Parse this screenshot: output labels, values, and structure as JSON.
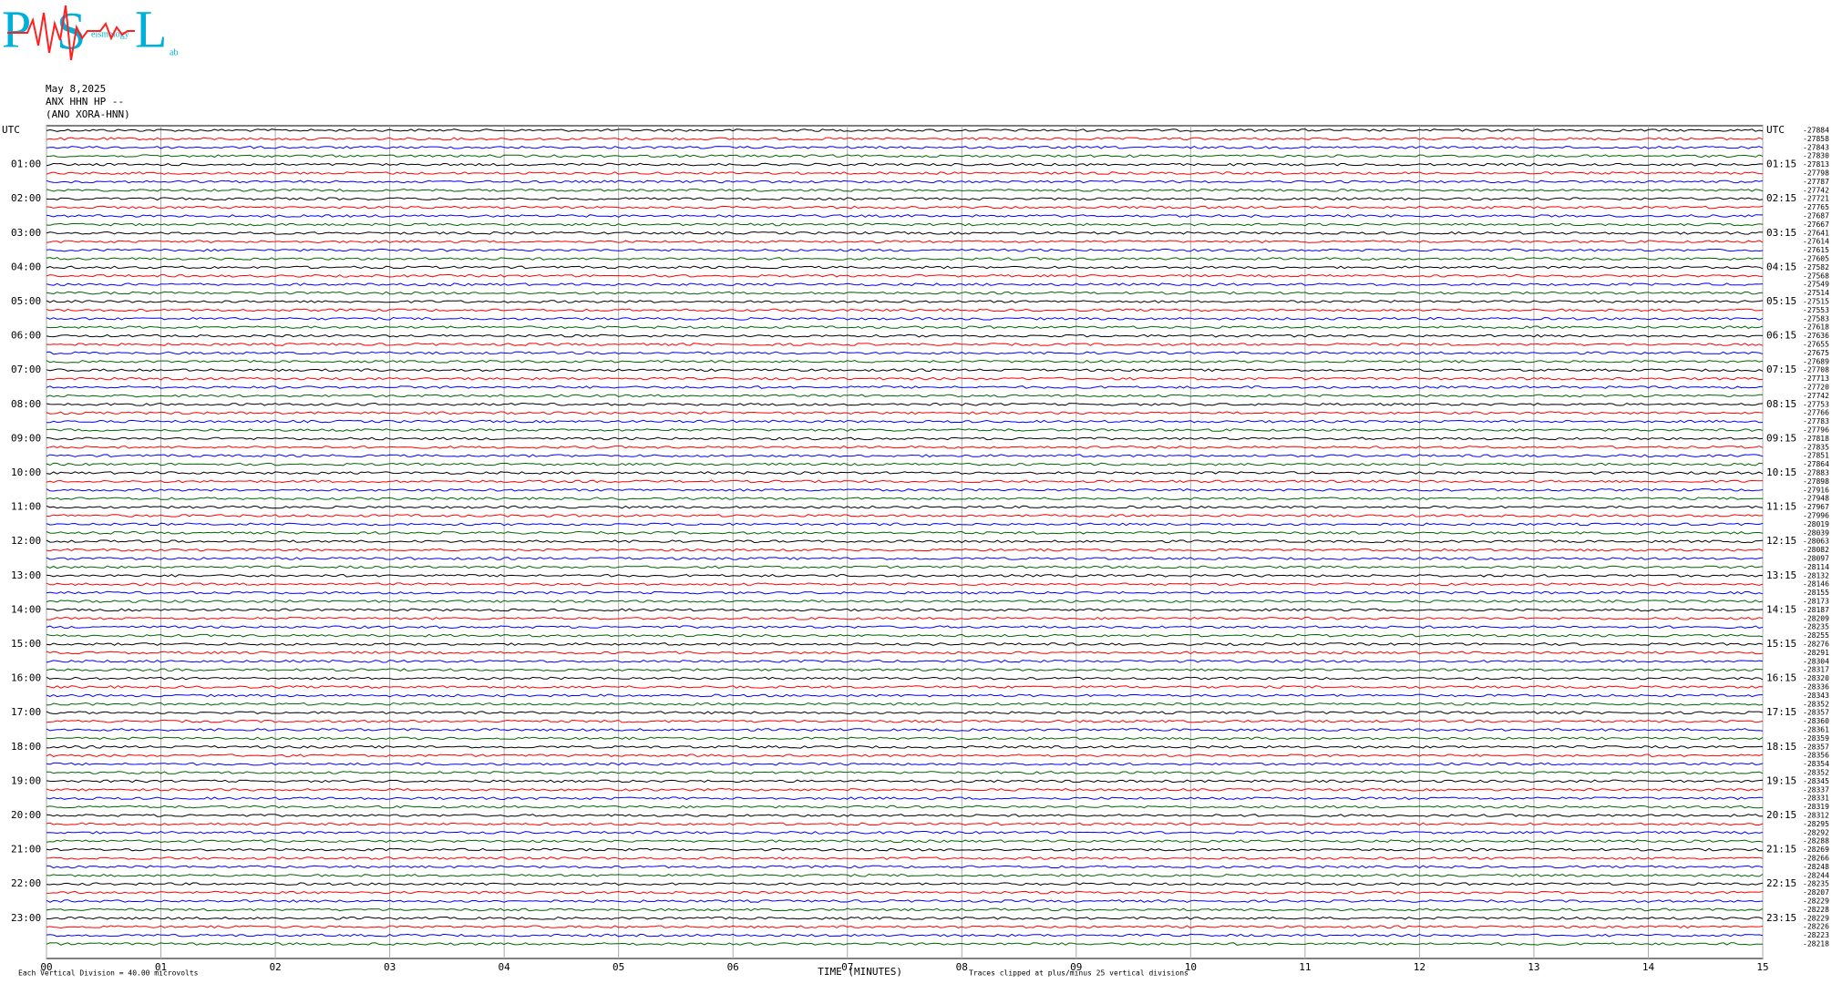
{
  "logo": {
    "letters": [
      "P",
      "S",
      "L"
    ],
    "caption": [
      "eismology",
      "ab"
    ]
  },
  "chart_data": {
    "type": "helicorder",
    "title": [
      "May 8,2025",
      "ANX HHN HP --",
      "(ANO XORA-HNN)"
    ],
    "x_label": "TIME (MINUTES)",
    "xlim": [
      0,
      15
    ],
    "xticks": [
      {
        "value": 0,
        "label": "00"
      },
      {
        "value": 1,
        "label": "01"
      },
      {
        "value": 2,
        "label": "02"
      },
      {
        "value": 3,
        "label": "03"
      },
      {
        "value": 4,
        "label": "04"
      },
      {
        "value": 5,
        "label": "05"
      },
      {
        "value": 6,
        "label": "06"
      },
      {
        "value": 7,
        "label": "07"
      },
      {
        "value": 8,
        "label": "08"
      },
      {
        "value": 9,
        "label": "09"
      },
      10,
      11,
      12,
      13,
      14,
      15
    ],
    "trace_colors": [
      "#000000",
      "#ff0000",
      "#0000ff",
      "#006400"
    ],
    "left_labels": [
      "UTC",
      "01:00",
      "02:00",
      "03:00",
      "04:00",
      "05:00",
      "06:00",
      "07:00",
      "08:00",
      "09:00",
      "10:00",
      "11:00",
      "12:00",
      "13:00",
      "14:00",
      "15:00",
      "16:00",
      "17:00",
      "18:00",
      "19:00",
      "20:00",
      "21:00",
      "22:00",
      "23:00"
    ],
    "right_labels": [
      "UTC",
      "01:15",
      "02:15",
      "03:15",
      "04:15",
      "05:15",
      "06:15",
      "07:15",
      "08:15",
      "09:15",
      "10:15",
      "11:15",
      "12:15",
      "13:15",
      "14:15",
      "15:15",
      "16:15",
      "17:15",
      "18:15",
      "19:15",
      "20:15",
      "21:15",
      "22:15",
      "23:15"
    ],
    "offsets": [
      -27884,
      -27858,
      -27843,
      -27830,
      -27813,
      -27798,
      -27787,
      -27742,
      -27721,
      -27765,
      -27687,
      -27667,
      -27641,
      -27614,
      -27615,
      -27605,
      -27582,
      -27568,
      -27549,
      -27514,
      -27515,
      -27553,
      -27583,
      -27618,
      -27636,
      -27655,
      -27675,
      -27689,
      -27708,
      -27713,
      -27720,
      -27742,
      -27753,
      -27766,
      -27783,
      -27796,
      -27818,
      -27835,
      -27851,
      -27864,
      -27883,
      -27898,
      -27916,
      -27948,
      -27967,
      -27996,
      -28019,
      -28039,
      -28063,
      -28082,
      -28097,
      -28114,
      -28132,
      -28146,
      -28155,
      -28173,
      -28187,
      -28209,
      -28235,
      -28255,
      -28276,
      -28291,
      -28304,
      -28317,
      -28320,
      -28336,
      -28343,
      -28352,
      -28357,
      -28360,
      -28361,
      -28359,
      -28357,
      -28356,
      -28354,
      -28352,
      -28345,
      -28337,
      -28331,
      -28319,
      -28312,
      -28295,
      -28292,
      -28288,
      -28269,
      -28266,
      -28248,
      -28244,
      -28235,
      -28207,
      -28229,
      -28228,
      -28229,
      -28226,
      -28223,
      -28218
    ],
    "footer_left": "Each Vertical Division =   40.00 microvolts",
    "footer_right": "Traces clipped at plus/minus 25 vertical divisions"
  }
}
